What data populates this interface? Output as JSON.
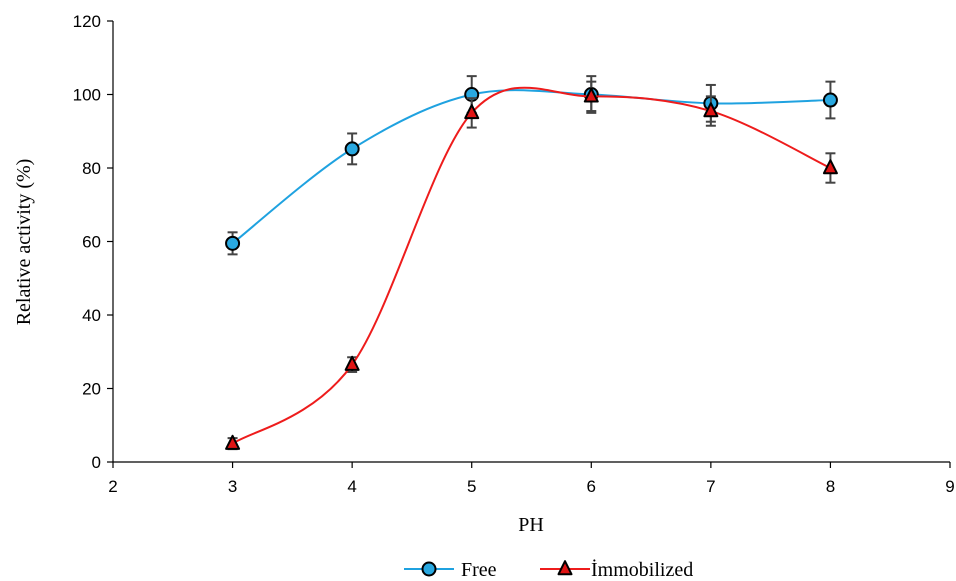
{
  "chart_data": {
    "type": "line",
    "title": "",
    "xlabel": "PH",
    "ylabel": "Relative activity (%)",
    "xlim": [
      2,
      9
    ],
    "ylim": [
      0,
      120
    ],
    "x_ticks": [
      "2",
      "3",
      "4",
      "5",
      "6",
      "7",
      "8",
      "9"
    ],
    "y_ticks": [
      "0",
      "20",
      "40",
      "60",
      "80",
      "100",
      "120"
    ],
    "grid": false,
    "legend_position": "bottom",
    "series": [
      {
        "name": "Free",
        "color": "#1fa2e0",
        "marker": "circle",
        "marker_fill": "#29a8e0",
        "x": [
          3,
          4,
          5,
          6,
          7,
          8
        ],
        "y": [
          59.5,
          85.2,
          100,
          100,
          97.6,
          98.5
        ],
        "error": [
          3,
          4.2,
          5,
          5,
          5,
          5
        ]
      },
      {
        "name": "İmmobilized",
        "color": "#ee1c1c",
        "marker": "triangle",
        "marker_fill": "#e01414",
        "x": [
          3,
          4,
          5,
          6,
          7,
          8
        ],
        "y": [
          5,
          26.5,
          95,
          99.5,
          95.5,
          80
        ],
        "error": [
          1.5,
          2,
          4,
          4,
          4,
          4
        ]
      }
    ]
  }
}
